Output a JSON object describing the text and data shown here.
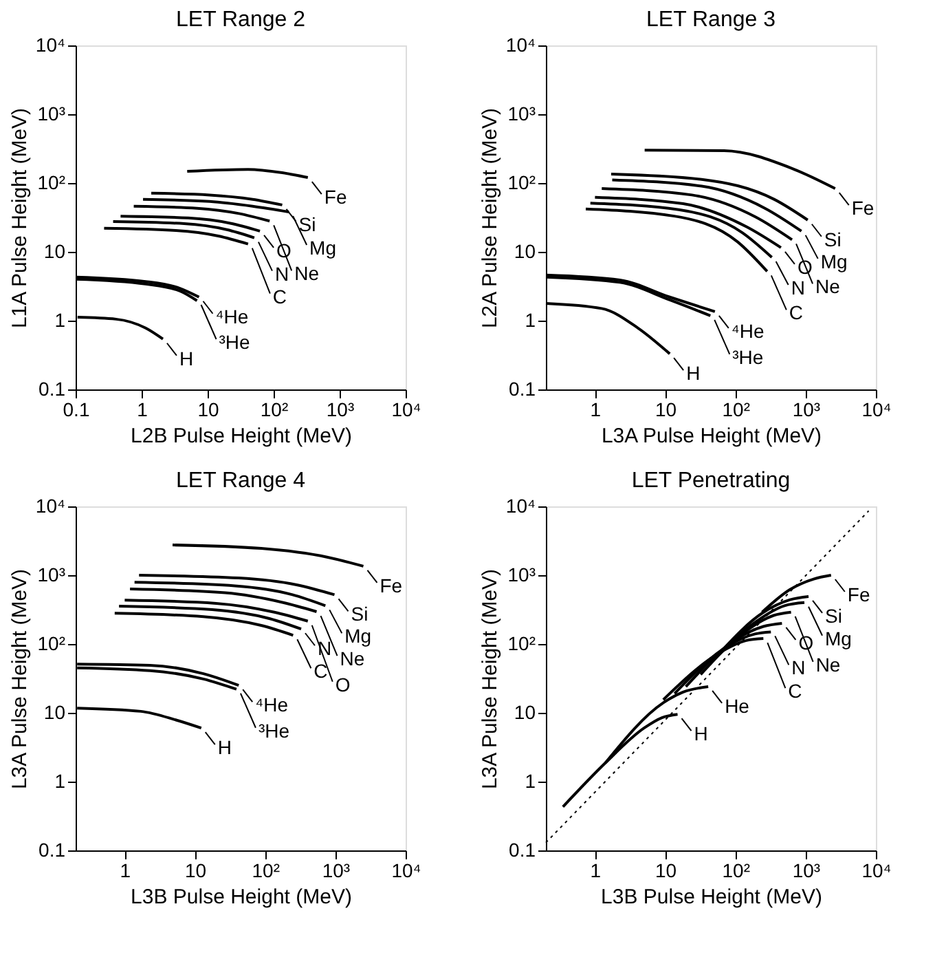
{
  "chart_data": [
    {
      "type": "line",
      "title": "LET Range 2",
      "xlabel": "L2B Pulse Height (MeV)",
      "ylabel": "L1A Pulse Height (MeV)",
      "log": "xy",
      "grid": false,
      "legend": "right",
      "xlim": [
        0.1,
        10000
      ],
      "ylim": [
        0.1,
        10000
      ],
      "xticks": [
        0.1,
        1,
        10,
        {
          "value": 100,
          "label": "10²"
        },
        {
          "value": 1000,
          "label": "10³"
        },
        {
          "value": 10000,
          "label": "10⁴"
        }
      ],
      "yticks": [
        0.1,
        1,
        10,
        {
          "value": 100,
          "label": "10²"
        },
        {
          "value": 1000,
          "label": "10³"
        },
        {
          "value": 10000,
          "label": "10⁴"
        }
      ],
      "series": [
        {
          "name": "Fe",
          "color": "#000000",
          "x": [
            4.9,
            41,
            135,
            330
          ],
          "values": [
            148,
            158,
            141,
            120
          ]
        },
        {
          "name": "Si",
          "color": "#000000",
          "x": [
            1.4,
            10.7,
            48,
            135
          ],
          "values": [
            71,
            67,
            58,
            48
          ]
        },
        {
          "name": "Mg",
          "color": "#000000",
          "x": [
            1.05,
            10.7,
            48,
            170
          ],
          "values": [
            58,
            54,
            46,
            38
          ]
        },
        {
          "name": "Ne",
          "color": "#000000",
          "x": [
            0.76,
            6.9,
            30,
            87
          ],
          "values": [
            46,
            43,
            36,
            28
          ]
        },
        {
          "name": "O",
          "color": "#000000",
          "x": [
            0.48,
            5.1,
            22,
            62
          ],
          "values": [
            33,
            31,
            26,
            20
          ]
        },
        {
          "name": "N",
          "color": "#000000",
          "x": [
            0.37,
            4.4,
            19.5,
            51
          ],
          "values": [
            27.5,
            25.7,
            21,
            16
          ]
        },
        {
          "name": "C",
          "color": "#000000",
          "x": [
            0.27,
            3.3,
            14.5,
            41
          ],
          "values": [
            22,
            20.4,
            17,
            13
          ]
        },
        {
          "name": "⁴He",
          "color": "#000000",
          "x": [
            0.1,
            1.15,
            3.8,
            7.4
          ],
          "values": [
            4.3,
            3.7,
            2.95,
            2.2
          ]
        },
        {
          "name": "³He",
          "color": "#000000",
          "x": [
            0.1,
            1.15,
            3.8,
            6.9
          ],
          "values": [
            4.0,
            3.4,
            2.7,
            1.95
          ]
        },
        {
          "name": "H",
          "color": "#000000",
          "x": [
            0.107,
            0.41,
            1.15,
            2.1
          ],
          "values": [
            1.12,
            1.05,
            0.78,
            0.54
          ]
        }
      ]
    },
    {
      "type": "line",
      "title": "LET Range 3",
      "xlabel": "L3A Pulse Height (MeV)",
      "ylabel": "L2A Pulse Height (MeV)",
      "log": "xy",
      "grid": false,
      "legend": "right",
      "xlim": [
        0.2,
        10000
      ],
      "ylim": [
        0.1,
        10000
      ],
      "xticks": [
        1,
        10,
        {
          "value": 100,
          "label": "10²"
        },
        {
          "value": 1000,
          "label": "10³"
        },
        {
          "value": 10000,
          "label": "10⁴"
        }
      ],
      "yticks": [
        0.1,
        1,
        10,
        {
          "value": 100,
          "label": "10²"
        },
        {
          "value": 1000,
          "label": "10³"
        },
        {
          "value": 10000,
          "label": "10⁴"
        }
      ],
      "series": [
        {
          "name": "Fe",
          "color": "#000000",
          "x": [
            5.1,
            69,
            640,
            2630
          ],
          "values": [
            300,
            295,
            163,
            83
          ]
        },
        {
          "name": "Si",
          "color": "#000000",
          "x": [
            1.7,
            33,
            355,
            1070
          ],
          "values": [
            135,
            113,
            58,
            29
          ]
        },
        {
          "name": "Mg",
          "color": "#000000",
          "x": [
            1.76,
            33,
            263,
            870
          ],
          "values": [
            111,
            90,
            43,
            20
          ]
        },
        {
          "name": "Ne",
          "color": "#000000",
          "x": [
            1.25,
            24,
            195,
            640
          ],
          "values": [
            83,
            67,
            32,
            15
          ]
        },
        {
          "name": "O",
          "color": "#000000",
          "x": [
            1.0,
            18,
            145,
            445
          ],
          "values": [
            62,
            50,
            23,
            11.5
          ]
        },
        {
          "name": "N",
          "color": "#000000",
          "x": [
            0.86,
            15.6,
            125,
            330
          ],
          "values": [
            51,
            41,
            19,
            8.3
          ]
        },
        {
          "name": "C",
          "color": "#000000",
          "x": [
            0.74,
            13.5,
            107,
            283
          ],
          "values": [
            42,
            33,
            14,
            5.2
          ]
        },
        {
          "name": "⁴He",
          "color": "#000000",
          "x": [
            0.2,
            2.26,
            11.6,
            51
          ],
          "values": [
            4.6,
            3.9,
            2.2,
            1.35
          ]
        },
        {
          "name": "³He",
          "color": "#000000",
          "x": [
            0.2,
            2.26,
            11.6,
            44
          ],
          "values": [
            4.3,
            3.6,
            2.0,
            1.18
          ]
        },
        {
          "name": "H",
          "color": "#000000",
          "x": [
            0.2,
            1.25,
            4.1,
            11.6
          ],
          "values": [
            1.78,
            1.5,
            0.78,
            0.33
          ]
        }
      ]
    },
    {
      "type": "line",
      "title": "LET Range 4",
      "xlabel": "L3B Pulse Height (MeV)",
      "ylabel": "L3A Pulse Height (MeV)",
      "log": "xy",
      "grid": false,
      "legend": "right",
      "xlim": [
        0.2,
        10000
      ],
      "ylim": [
        0.1,
        10000
      ],
      "xticks": [
        1,
        10,
        {
          "value": 100,
          "label": "10²"
        },
        {
          "value": 1000,
          "label": "10³"
        },
        {
          "value": 10000,
          "label": "10⁴"
        }
      ],
      "yticks": [
        0.1,
        1,
        10,
        {
          "value": 100,
          "label": "10²"
        },
        {
          "value": 1000,
          "label": "10³"
        },
        {
          "value": 10000,
          "label": "10⁴"
        }
      ],
      "series": [
        {
          "name": "Fe",
          "color": "#000000",
          "x": [
            4.8,
            88,
            780,
            2500
          ],
          "values": [
            2750,
            2450,
            1820,
            1350
          ]
        },
        {
          "name": "Si",
          "color": "#000000",
          "x": [
            1.6,
            42,
            280,
            970
          ],
          "values": [
            1000,
            910,
            725,
            520
          ]
        },
        {
          "name": "Mg",
          "color": "#000000",
          "x": [
            1.38,
            37,
            245,
            720
          ],
          "values": [
            790,
            700,
            520,
            360
          ]
        },
        {
          "name": "Ne",
          "color": "#000000",
          "x": [
            1.19,
            27,
            180,
            540
          ],
          "values": [
            630,
            555,
            400,
            295
          ]
        },
        {
          "name": "O",
          "color": "#000000",
          "x": [
            1.0,
            20,
            135,
            405
          ],
          "values": [
            435,
            390,
            290,
            215
          ]
        },
        {
          "name": "N",
          "color": "#000000",
          "x": [
            0.83,
            17.6,
            117,
            325
          ],
          "values": [
            355,
            316,
            233,
            165
          ]
        },
        {
          "name": "C",
          "color": "#000000",
          "x": [
            0.72,
            13.2,
            88,
            250
          ],
          "values": [
            280,
            250,
            186,
            134
          ]
        },
        {
          "name": "⁴He",
          "color": "#000000",
          "x": [
            0.21,
            2.3,
            13.2,
            42
          ],
          "values": [
            51,
            49,
            37,
            25
          ]
        },
        {
          "name": "³He",
          "color": "#000000",
          "x": [
            0.21,
            2.3,
            13.2,
            39
          ],
          "values": [
            45,
            41,
            31,
            22
          ]
        },
        {
          "name": "H",
          "color": "#000000",
          "x": [
            0.21,
            1.7,
            5.5,
            12.3
          ],
          "values": [
            11.7,
            10.5,
            7.8,
            6.0
          ]
        }
      ]
    },
    {
      "type": "line",
      "title": "LET Penetrating",
      "xlabel": "L3B Pulse Height (MeV)",
      "ylabel": "L3A Pulse Height (MeV)",
      "log": "xy",
      "grid": false,
      "legend": "right",
      "xlim": [
        0.2,
        10000
      ],
      "ylim": [
        0.1,
        10000
      ],
      "xticks": [
        1,
        10,
        {
          "value": 100,
          "label": "10²"
        },
        {
          "value": 1000,
          "label": "10³"
        },
        {
          "value": 10000,
          "label": "10⁴"
        }
      ],
      "yticks": [
        0.1,
        1,
        10,
        {
          "value": 100,
          "label": "10²"
        },
        {
          "value": 1000,
          "label": "10³"
        },
        {
          "value": 10000,
          "label": "10⁴"
        }
      ],
      "series": [
        {
          "name": "Fe",
          "color": "#000000",
          "x": [
            240,
            600,
            1300,
            2300
          ],
          "values": [
            290,
            620,
            880,
            1000
          ]
        },
        {
          "name": "Si",
          "color": "#000000",
          "x": [
            63,
            240,
            600,
            1100
          ],
          "values": [
            79,
            280,
            440,
            490
          ]
        },
        {
          "name": "Mg",
          "color": "#000000",
          "x": [
            44,
            170,
            500,
            960
          ],
          "values": [
            53,
            190,
            360,
            400
          ]
        },
        {
          "name": "Ne",
          "color": "#000000",
          "x": [
            32,
            130,
            350,
            620
          ],
          "values": [
            36,
            145,
            260,
            290
          ]
        },
        {
          "name": "O",
          "color": "#000000",
          "x": [
            19.7,
            100,
            250,
            460
          ],
          "values": [
            24,
            115,
            180,
            200
          ]
        },
        {
          "name": "N",
          "color": "#000000",
          "x": [
            13.6,
            80,
            190,
            320
          ],
          "values": [
            19,
            95,
            140,
            150
          ]
        },
        {
          "name": "C",
          "color": "#000000",
          "x": [
            9.4,
            60,
            140,
            250
          ],
          "values": [
            15.5,
            75,
            112,
            120
          ]
        },
        {
          "name": "He",
          "color": "#000000",
          "x": [
            1.4,
            9.4,
            18,
            41
          ],
          "values": [
            1.86,
            14,
            20,
            24
          ]
        },
        {
          "name": "H",
          "color": "#000000",
          "x": [
            0.35,
            1.4,
            5,
            9,
            15
          ],
          "values": [
            0.43,
            1.86,
            6,
            8.5,
            9.5
          ]
        },
        {
          "type": "line",
          "line_style": "dotted",
          "color": "#000000",
          "x": [
            0.2,
            7900
          ],
          "values": [
            0.13,
            8600
          ]
        }
      ]
    }
  ]
}
